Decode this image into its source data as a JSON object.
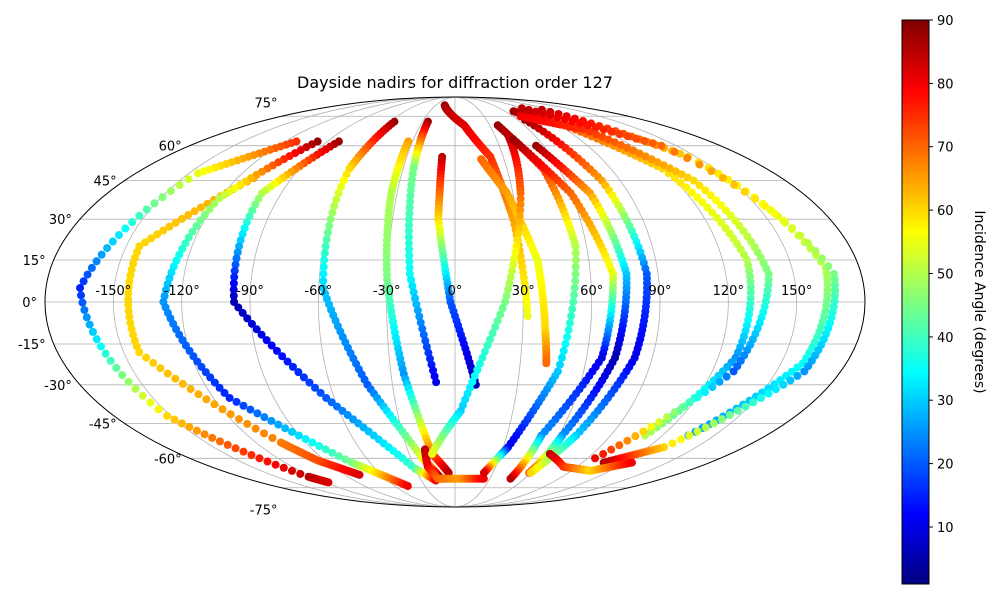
{
  "chart_data": {
    "type": "scatter",
    "projection": "mollweide",
    "title": "Dayside nadirs for diffraction order 127",
    "xlabel": "",
    "ylabel": "",
    "x_ticks": [
      "-150°",
      "-120°",
      "-90°",
      "-60°",
      "-30°",
      "0°",
      "30°",
      "60°",
      "90°",
      "120°",
      "150°"
    ],
    "x_tick_values": [
      -150,
      -120,
      -90,
      -60,
      -30,
      0,
      30,
      60,
      90,
      120,
      150
    ],
    "y_ticks": [
      "75°",
      "60°",
      "45°",
      "30°",
      "15°",
      "0°",
      "-15°",
      "-30°",
      "-45°",
      "-60°",
      "-75°"
    ],
    "y_tick_values": [
      75,
      60,
      45,
      30,
      15,
      0,
      -15,
      -30,
      -45,
      -60,
      -75
    ],
    "xlim": [
      -180,
      180
    ],
    "ylim": [
      -90,
      90
    ],
    "grid": true,
    "colormap": "jet",
    "colorbar": {
      "label": "Incidence Angle (degrees)",
      "range": [
        1,
        90
      ],
      "ticks": [
        "10",
        "20",
        "30",
        "40",
        "50",
        "60",
        "70",
        "80",
        "90"
      ],
      "tick_values": [
        10,
        20,
        30,
        40,
        50,
        60,
        70,
        80,
        90
      ]
    },
    "tracks": [
      {
        "lon": [
          -112,
          -145,
          -165,
          -152,
          -123,
          -117
        ],
        "lat": [
          62,
          48,
          5,
          -42,
          -69,
          -72
        ],
        "inc": [
          75,
          55,
          15,
          60,
          85,
          82
        ]
      },
      {
        "lon": [
          -111,
          -144,
          -143,
          -105,
          -95,
          -78
        ],
        "lat": [
          46,
          20,
          -18,
          -53,
          -61,
          -68
        ],
        "inc": [
          65,
          60,
          60,
          68,
          72,
          82
        ]
      },
      {
        "lon": [
          -97,
          -120,
          -128,
          -112,
          -73,
          -47
        ],
        "lat": [
          62,
          38,
          0,
          -35,
          -62,
          -74
        ],
        "inc": [
          88,
          50,
          25,
          15,
          45,
          80
        ]
      },
      {
        "lon": [
          -82,
          -100,
          -97,
          -64,
          -30,
          -17
        ],
        "lat": [
          62,
          40,
          0,
          -35,
          -65,
          -71
        ],
        "inc": [
          88,
          50,
          5,
          20,
          40,
          80
        ]
      },
      {
        "lon": [
          -56,
          -61,
          -58,
          -42,
          -22,
          -12
        ],
        "lat": [
          72,
          50,
          5,
          -30,
          -60,
          -70
        ],
        "inc": [
          88,
          60,
          30,
          20,
          55,
          88
        ]
      },
      {
        "lon": [
          -33,
          -33,
          -30,
          -24,
          -15,
          -5
        ],
        "lat": [
          62,
          40,
          8,
          -26,
          -58,
          -67
        ],
        "inc": [
          65,
          50,
          45,
          25,
          70,
          85
        ]
      },
      {
        "lon": [
          -25,
          -24,
          -20,
          -9
        ],
        "lat": [
          72,
          50,
          10,
          -29
        ],
        "inc": [
          88,
          45,
          35,
          10
        ]
      },
      {
        "lon": [
          -8,
          -8,
          -2,
          10
        ],
        "lat": [
          55,
          30,
          0,
          -30
        ],
        "inc": [
          85,
          60,
          20,
          5
        ]
      },
      {
        "lon": [
          -19,
          -20,
          -15,
          5,
          25
        ],
        "lat": [
          -56,
          -64,
          -70,
          -70,
          -70
        ],
        "inc": [
          85,
          80,
          70,
          65,
          80
        ]
      },
      {
        "lon": [
          -16,
          -8,
          8,
          22,
          28,
          32
        ],
        "lat": [
          82,
          78,
          70,
          55,
          30,
          -5
        ],
        "inc": [
          88,
          85,
          82,
          75,
          65,
          55
        ]
      },
      {
        "lon": [
          16,
          27,
          37,
          40,
          42
        ],
        "lat": [
          54,
          40,
          15,
          -10,
          -22
        ],
        "inc": [
          70,
          65,
          55,
          60,
          70
        ]
      },
      {
        "lon": [
          40,
          34,
          22,
          3,
          -15
        ],
        "lat": [
          65,
          40,
          0,
          -40,
          -58
        ],
        "inc": [
          85,
          70,
          45,
          30,
          55
        ]
      },
      {
        "lon": [
          37,
          51,
          55,
          48,
          33,
          23
        ],
        "lat": [
          70,
          50,
          20,
          -25,
          -55,
          -67
        ],
        "inc": [
          88,
          75,
          50,
          30,
          10,
          82
        ]
      },
      {
        "lon": [
          42,
          60,
          70,
          67,
          50,
          48
        ],
        "lat": [
          63,
          40,
          10,
          -20,
          -50,
          -70
        ],
        "inc": [
          88,
          70,
          55,
          10,
          25,
          85
        ]
      },
      {
        "lon": [
          55,
          70,
          76,
          73,
          62,
          59
        ],
        "lat": [
          60,
          40,
          10,
          -20,
          -50,
          -67
        ],
        "inc": [
          88,
          65,
          30,
          5,
          25,
          75
        ]
      },
      {
        "lon": [
          67,
          80,
          85,
          82,
          70,
          60
        ],
        "lat": [
          73,
          45,
          10,
          -20,
          -50,
          -67
        ],
        "inc": [
          88,
          65,
          20,
          10,
          30,
          60
        ]
      },
      {
        "lon": [
          70,
          95,
          120,
          131,
          128,
          110
        ],
        "lat": [
          78,
          70,
          50,
          15,
          -20,
          -50
        ],
        "inc": [
          88,
          72,
          60,
          50,
          25,
          50
        ]
      },
      {
        "lon": [
          68,
          105,
          130,
          139,
          130,
          95
        ],
        "lat": [
          75,
          68,
          45,
          10,
          -25,
          -60
        ],
        "inc": [
          80,
          75,
          60,
          45,
          20,
          80
        ]
      },
      {
        "lon": [
          110,
          145,
          165,
          160,
          135
        ],
        "lat": [
          79,
          55,
          12,
          -22,
          -50
        ],
        "inc": [
          85,
          60,
          50,
          35,
          25
        ]
      },
      {
        "lon": [
          90,
          140,
          168,
          163,
          130,
          105
        ],
        "lat": [
          80,
          60,
          10,
          -25,
          -55,
          -62
        ],
        "inc": [
          85,
          70,
          45,
          25,
          60,
          85
        ]
      },
      {
        "lon": [
          62,
          80,
          105,
          125
        ],
        "lat": [
          -58,
          -64,
          -66,
          -62
        ],
        "inc": [
          85,
          75,
          60,
          80
        ]
      }
    ]
  }
}
